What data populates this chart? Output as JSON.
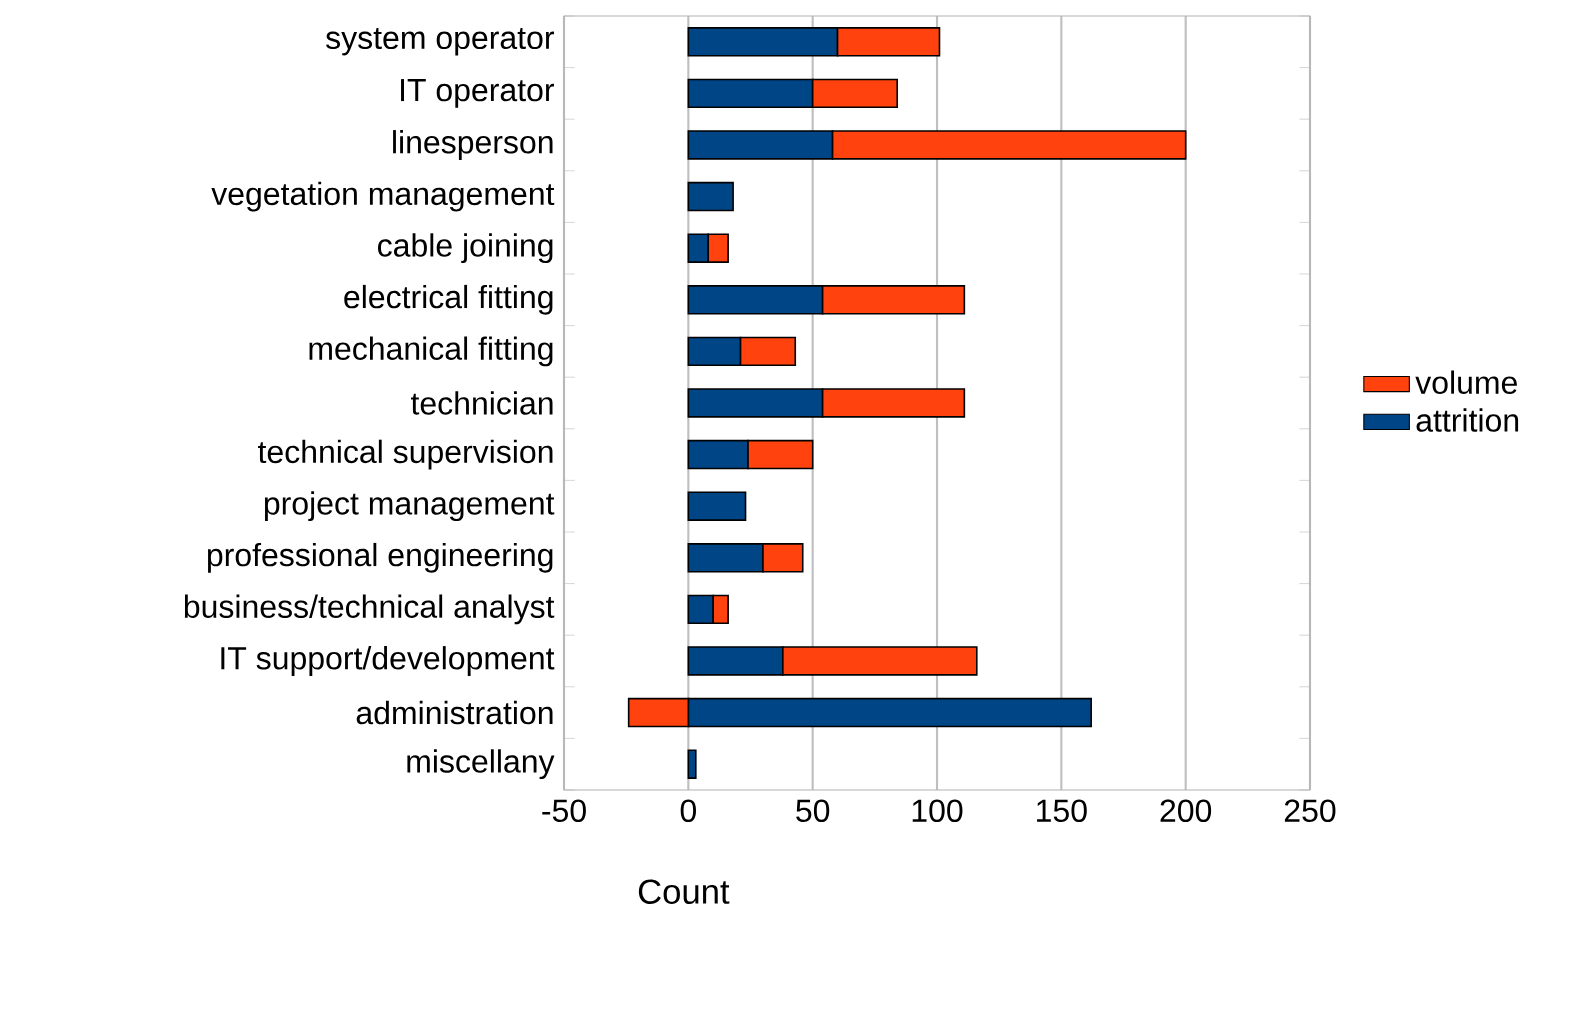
{
  "chart_data": {
    "type": "bar",
    "orientation": "horizontal",
    "stacked": true,
    "categories": [
      "system operator",
      "IT operator",
      "linesperson",
      "vegetation management",
      "cable joining",
      "electrical fitting",
      "mechanical fitting",
      "technician",
      "technical supervision",
      "project management",
      "professional engineering",
      "business/technical analyst",
      "IT support/development",
      "administration",
      "miscellany"
    ],
    "series": [
      {
        "name": "attrition",
        "color": "#004586",
        "values": [
          60,
          50,
          58,
          18,
          8,
          54,
          21,
          54,
          24,
          23,
          30,
          10,
          38,
          162,
          3
        ]
      },
      {
        "name": "volume",
        "color": "#ff420e",
        "values": [
          41,
          34,
          142,
          null,
          8,
          57,
          22,
          57,
          26,
          null,
          16,
          6,
          78,
          -24,
          null
        ]
      }
    ],
    "xlabel": "Count",
    "xlim": [
      -50,
      250
    ],
    "xticks": [
      -50,
      0,
      50,
      100,
      150,
      200,
      250
    ],
    "grid": "x",
    "legend": "right"
  }
}
